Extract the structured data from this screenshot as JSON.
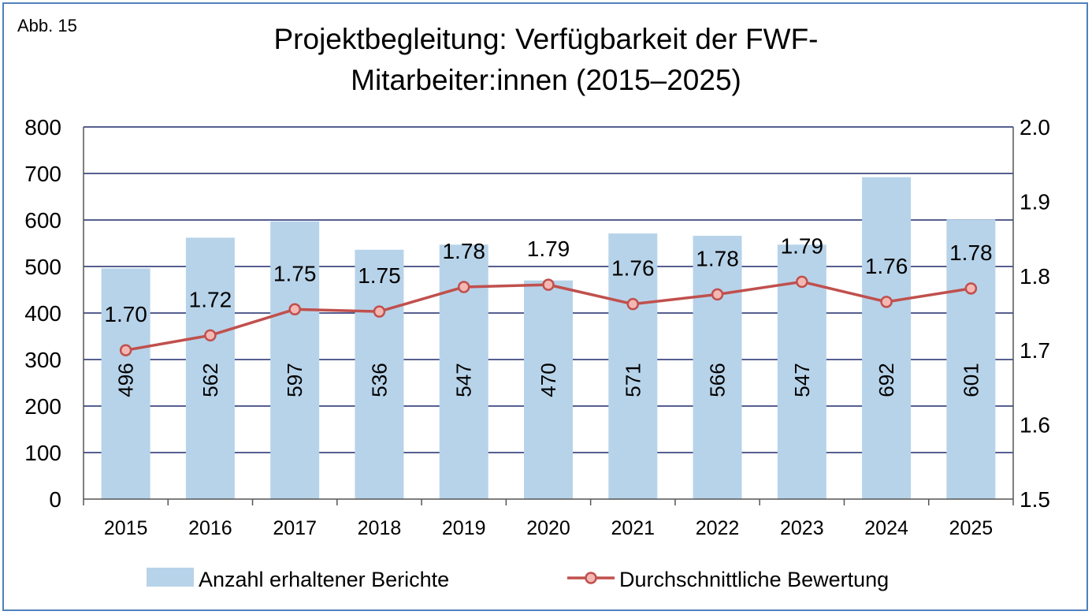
{
  "figure_label": "Abb. 15",
  "chart_data": {
    "type": "bar",
    "title_lines": [
      "Projektbegleitung: Verfügbarkeit der FWF-",
      "Mitarbeiter:innen (2015–2025)"
    ],
    "categories": [
      "2015",
      "2016",
      "2017",
      "2018",
      "2019",
      "2020",
      "2021",
      "2022",
      "2023",
      "2024",
      "2025"
    ],
    "series": [
      {
        "name": "Anzahl erhaltener Berichte",
        "type": "bar",
        "axis": "left",
        "color": "#b7d3e9",
        "values": [
          496,
          562,
          597,
          536,
          547,
          470,
          571,
          566,
          547,
          692,
          601
        ],
        "labels": [
          "496",
          "562",
          "597",
          "536",
          "547",
          "470",
          "571",
          "566",
          "547",
          "692",
          "601"
        ]
      },
      {
        "name": "Durchschnittliche Bewertung",
        "type": "line",
        "axis": "right",
        "color": "#c0504d",
        "marker_fill": "#f4b8b4",
        "values": [
          1.7,
          1.72,
          1.755,
          1.752,
          1.785,
          1.788,
          1.762,
          1.775,
          1.792,
          1.765,
          1.783
        ],
        "labels": [
          "1.70",
          "1.72",
          "1.75",
          "1.75",
          "1.78",
          "1.79",
          "1.76",
          "1.78",
          "1.79",
          "1.76",
          "1.78"
        ]
      }
    ],
    "y_left": {
      "min": 0,
      "max": 800,
      "ticks": [
        "0",
        "100",
        "200",
        "300",
        "400",
        "500",
        "600",
        "700",
        "800"
      ]
    },
    "y_right": {
      "min": 1.5,
      "max": 2.0,
      "ticks": [
        "1.5",
        "1.6",
        "1.7",
        "1.8",
        "1.9",
        "2.0"
      ]
    },
    "grid": true,
    "grid_color": "#1f2a6b",
    "legend_position": "bottom"
  }
}
